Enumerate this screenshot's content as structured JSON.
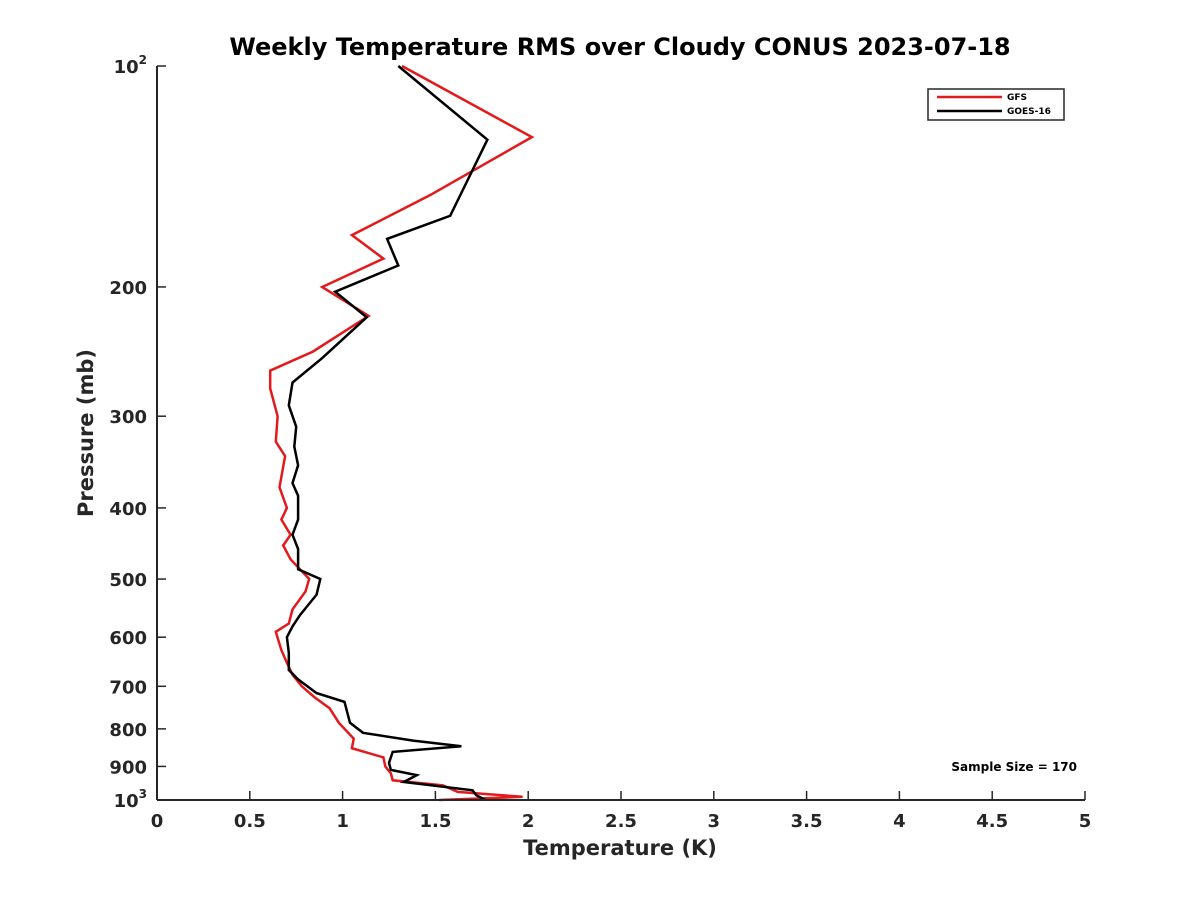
{
  "chart_data": {
    "type": "line",
    "title": "Weekly Temperature RMS over Cloudy CONUS 2023-07-18",
    "xlabel": "Temperature (K)",
    "ylabel": "Pressure (mb)",
    "xlim": [
      0,
      5
    ],
    "ylim": [
      100,
      1000
    ],
    "y_scale": "log",
    "y_reversed": true,
    "grid": false,
    "legend_position": "top-right",
    "x_ticks": [
      0,
      0.5,
      1,
      1.5,
      2,
      2.5,
      3,
      3.5,
      4,
      4.5,
      5
    ],
    "x_tick_labels": [
      "0",
      "0.5",
      "1",
      "1.5",
      "2",
      "2.5",
      "3",
      "3.5",
      "4",
      "4.5",
      "5"
    ],
    "y_ticks": [
      {
        "value": 100,
        "base": "10",
        "exp": "2"
      },
      {
        "value": 200,
        "label": "200"
      },
      {
        "value": 300,
        "label": "300"
      },
      {
        "value": 400,
        "label": "400"
      },
      {
        "value": 500,
        "label": "500"
      },
      {
        "value": 600,
        "label": "600"
      },
      {
        "value": 700,
        "label": "700"
      },
      {
        "value": 800,
        "label": "800"
      },
      {
        "value": 900,
        "label": "900"
      },
      {
        "value": 1000,
        "base": "10",
        "exp": "3"
      }
    ],
    "annotation": "Sample Size = 170",
    "series": [
      {
        "name": "GFS",
        "color": "#e3191c",
        "points": [
          [
            1.32,
            100
          ],
          [
            2.02,
            125
          ],
          [
            1.47,
            150
          ],
          [
            1.05,
            170
          ],
          [
            1.22,
            183
          ],
          [
            0.89,
            200
          ],
          [
            1.14,
            219
          ],
          [
            0.84,
            245
          ],
          [
            0.61,
            260
          ],
          [
            0.61,
            275
          ],
          [
            0.65,
            300
          ],
          [
            0.64,
            325
          ],
          [
            0.69,
            340
          ],
          [
            0.66,
            375
          ],
          [
            0.7,
            400
          ],
          [
            0.67,
            415
          ],
          [
            0.72,
            435
          ],
          [
            0.68,
            450
          ],
          [
            0.72,
            470
          ],
          [
            0.82,
            500
          ],
          [
            0.8,
            520
          ],
          [
            0.73,
            550
          ],
          [
            0.71,
            575
          ],
          [
            0.64,
            590
          ],
          [
            0.67,
            625
          ],
          [
            0.7,
            650
          ],
          [
            0.73,
            675
          ],
          [
            0.78,
            700
          ],
          [
            0.85,
            725
          ],
          [
            0.93,
            750
          ],
          [
            0.98,
            785
          ],
          [
            1.06,
            825
          ],
          [
            1.05,
            850
          ],
          [
            1.22,
            875
          ],
          [
            1.23,
            900
          ],
          [
            1.26,
            920
          ],
          [
            1.27,
            940
          ],
          [
            1.54,
            955
          ],
          [
            1.62,
            975
          ],
          [
            1.97,
            990
          ],
          [
            1.52,
            1000
          ]
        ]
      },
      {
        "name": "GOES-16",
        "color": "#000000",
        "points": [
          [
            1.3,
            100
          ],
          [
            1.78,
            126
          ],
          [
            1.58,
            160
          ],
          [
            1.24,
            172
          ],
          [
            1.3,
            187
          ],
          [
            0.96,
            203
          ],
          [
            1.13,
            220
          ],
          [
            0.89,
            250
          ],
          [
            0.73,
            270
          ],
          [
            0.71,
            290
          ],
          [
            0.75,
            310
          ],
          [
            0.74,
            330
          ],
          [
            0.76,
            350
          ],
          [
            0.73,
            370
          ],
          [
            0.76,
            385
          ],
          [
            0.76,
            415
          ],
          [
            0.73,
            435
          ],
          [
            0.76,
            455
          ],
          [
            0.76,
            485
          ],
          [
            0.88,
            500
          ],
          [
            0.86,
            525
          ],
          [
            0.77,
            560
          ],
          [
            0.73,
            580
          ],
          [
            0.7,
            600
          ],
          [
            0.71,
            630
          ],
          [
            0.71,
            665
          ],
          [
            0.76,
            685
          ],
          [
            0.86,
            715
          ],
          [
            1.01,
            735
          ],
          [
            1.04,
            785
          ],
          [
            1.11,
            810
          ],
          [
            1.38,
            830
          ],
          [
            1.64,
            845
          ],
          [
            1.27,
            860
          ],
          [
            1.25,
            890
          ],
          [
            1.26,
            910
          ],
          [
            1.4,
            925
          ],
          [
            1.33,
            945
          ],
          [
            1.7,
            970
          ],
          [
            1.72,
            985
          ],
          [
            1.77,
            1000
          ]
        ]
      }
    ]
  }
}
